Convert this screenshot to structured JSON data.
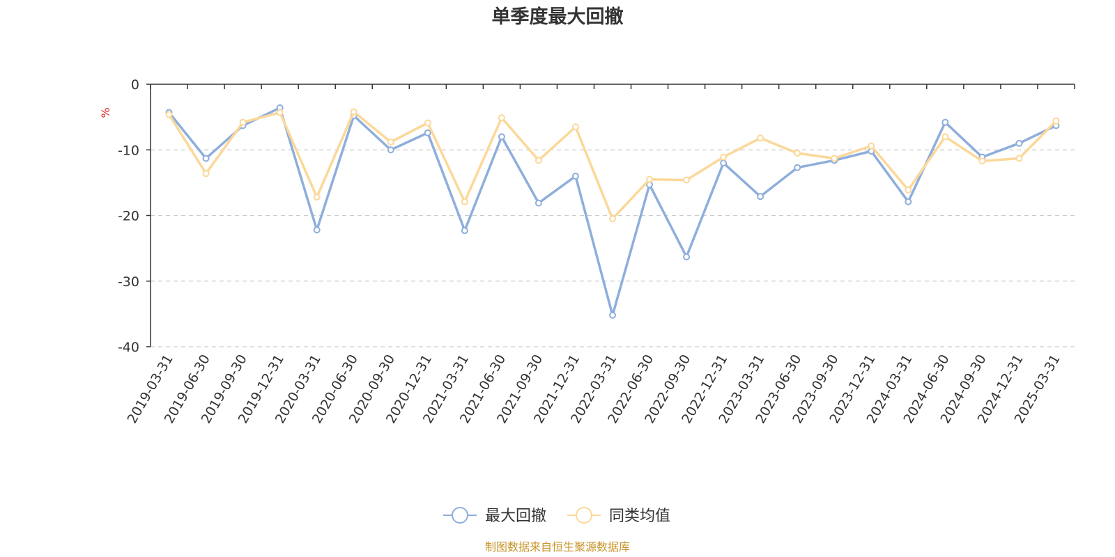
{
  "chart_data": {
    "type": "line",
    "title": "单季度最大回撤",
    "ylabel": "%",
    "ylim": [
      -40,
      0
    ],
    "yticks": [
      0,
      -10,
      -20,
      -30,
      -40
    ],
    "grid": true,
    "legend_position": "bottom",
    "categories": [
      "2019-03-31",
      "2019-06-30",
      "2019-09-30",
      "2019-12-31",
      "2020-03-31",
      "2020-06-30",
      "2020-09-30",
      "2020-12-31",
      "2021-03-31",
      "2021-06-30",
      "2021-09-30",
      "2021-12-31",
      "2022-03-31",
      "2022-06-30",
      "2022-09-30",
      "2022-12-31",
      "2023-03-31",
      "2023-06-30",
      "2023-09-30",
      "2023-12-31",
      "2024-03-31",
      "2024-06-30",
      "2024-09-30",
      "2024-12-31",
      "2025-03-31"
    ],
    "series": [
      {
        "name": "最大回撤",
        "color": "#8eaedb",
        "values": [
          -4.3,
          -11.3,
          -6.3,
          -3.6,
          -22.2,
          -4.8,
          -10.0,
          -7.4,
          -22.3,
          -8.0,
          -18.1,
          -14.0,
          -35.2,
          -15.3,
          -26.3,
          -12.0,
          -17.1,
          -12.7,
          -11.6,
          -10.2,
          -17.9,
          -5.8,
          -11.1,
          -9.0,
          -6.3
        ]
      },
      {
        "name": "同类均值",
        "color": "#fbd899",
        "values": [
          -4.6,
          -13.6,
          -5.8,
          -4.3,
          -17.2,
          -4.2,
          -8.8,
          -5.9,
          -17.9,
          -5.1,
          -11.6,
          -6.5,
          -20.5,
          -14.5,
          -14.6,
          -11.1,
          -8.2,
          -10.5,
          -11.3,
          -9.4,
          -16.1,
          -8.0,
          -11.7,
          -11.3,
          -5.6
        ]
      }
    ]
  },
  "source_text": "制图数据来自恒生聚源数据库",
  "colors": {
    "axis": "#333333",
    "grid": "#cccccc",
    "unit": "#e02020",
    "source": "#c8952a"
  }
}
